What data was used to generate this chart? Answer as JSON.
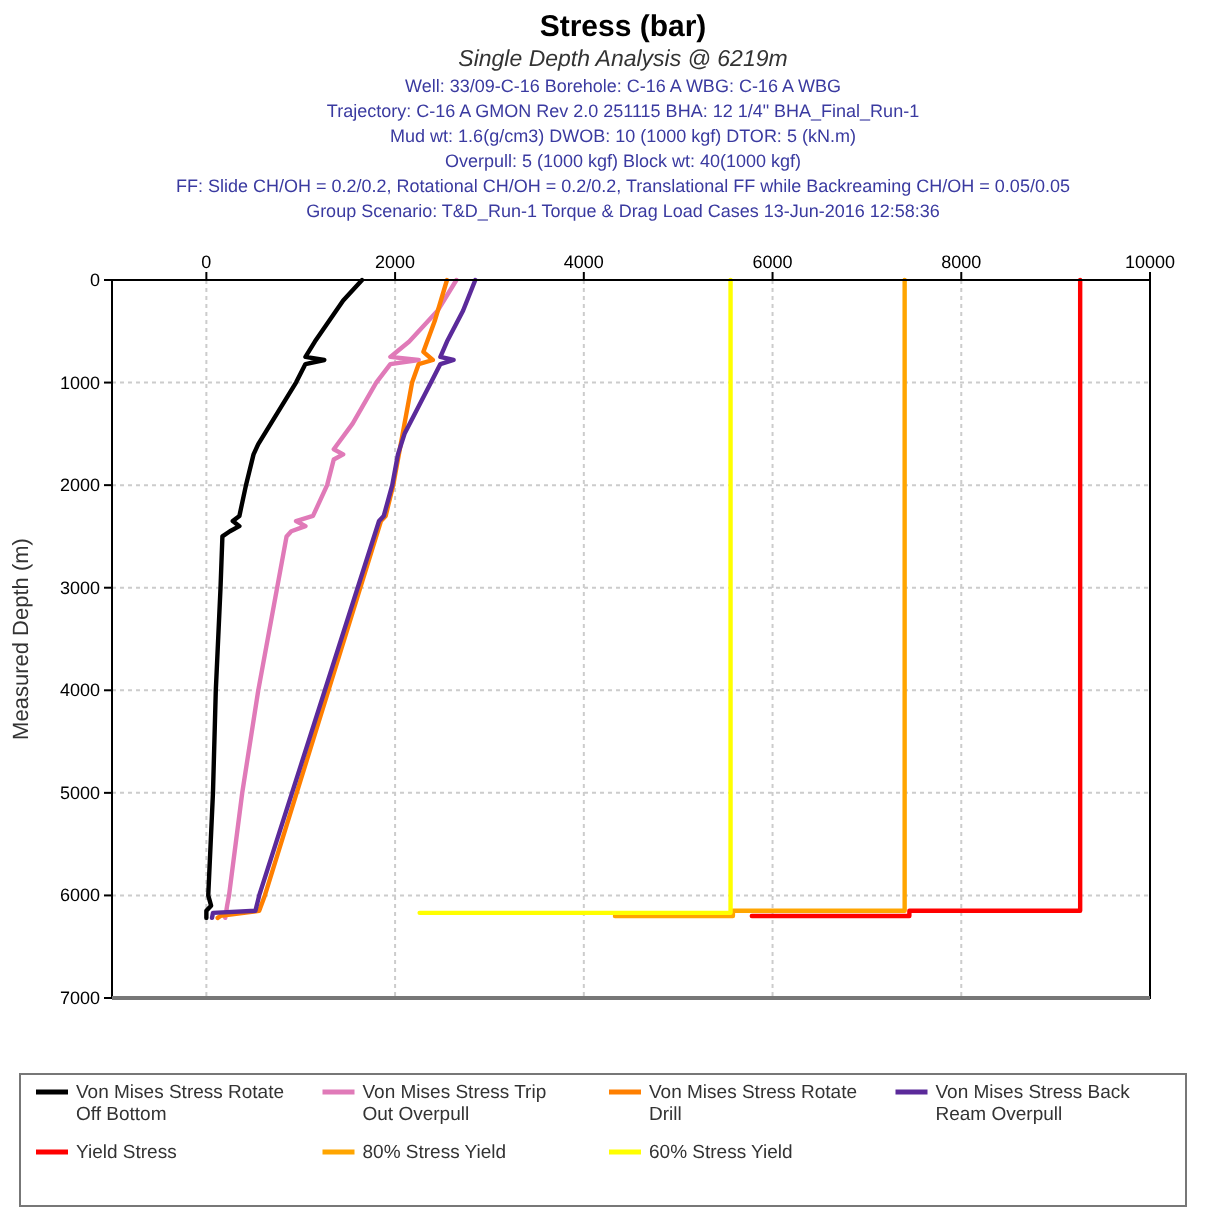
{
  "chart_data": {
    "type": "line",
    "title": "Stress (bar)",
    "subtitle": "Single Depth Analysis @ 6219m",
    "annotations": [
      "Well: 33/09-C-16 Borehole: C-16 A WBG: C-16 A WBG",
      "Trajectory: C-16 A GMON Rev 2.0 251115 BHA: 12 1/4\" BHA_Final_Run-1",
      "Mud wt: 1.6(g/cm3) DWOB: 10 (1000 kgf) DTOR: 5 (kN.m)",
      "Overpull: 5 (1000 kgf) Block wt: 40(1000 kgf)",
      "FF: Slide CH/OH = 0.2/0.2, Rotational CH/OH = 0.2/0.2, Translational FF while Backreaming CH/OH = 0.05/0.05",
      "Group Scenario: T&D_Run-1 Torque & Drag Load Cases 13-Jun-2016 12:58:36"
    ],
    "ylabel": "Measured Depth (m)",
    "xlim": [
      -1000,
      10000
    ],
    "xticks": [
      0,
      2000,
      4000,
      6000,
      8000,
      10000
    ],
    "ylim": [
      7000,
      0
    ],
    "yticks": [
      0,
      1000,
      2000,
      3000,
      4000,
      5000,
      6000,
      7000
    ],
    "grid": true,
    "legend": "bottom",
    "marker": "none",
    "line_style": "solid",
    "series": [
      {
        "name": "Von Mises Stress Rotate Off Bottom",
        "color": "#000000",
        "x": [
          1650,
          1450,
          1300,
          1150,
          1050,
          1250,
          1050,
          950,
          750,
          550,
          500,
          420,
          350,
          280,
          350,
          250,
          170,
          150,
          100,
          70,
          20,
          50,
          0,
          0
        ],
        "values": [
          0,
          200,
          400,
          600,
          750,
          780,
          820,
          1000,
          1300,
          1600,
          1700,
          2000,
          2300,
          2350,
          2400,
          2450,
          2500,
          3000,
          4000,
          5000,
          6000,
          6100,
          6150,
          6219
        ]
      },
      {
        "name": "Von Mises Stress Trip Out Overpull",
        "color": "#e07ab8",
        "x": [
          2650,
          2450,
          2150,
          1950,
          2250,
          1950,
          1800,
          1550,
          1350,
          1450,
          1350,
          1280,
          1130,
          950,
          1050,
          900,
          850,
          550,
          380,
          240,
          220,
          200
        ],
        "values": [
          0,
          300,
          600,
          750,
          780,
          820,
          1000,
          1400,
          1650,
          1700,
          1750,
          2000,
          2300,
          2350,
          2400,
          2450,
          2500,
          4000,
          5000,
          6000,
          6100,
          6219
        ]
      },
      {
        "name": "Von Mises Stress Rotate Drill",
        "color": "#ff7f00",
        "x": [
          2550,
          2420,
          2300,
          2400,
          2250,
          2180,
          2080,
          1980,
          1900,
          1850,
          620,
          560,
          150,
          120
        ],
        "values": [
          0,
          400,
          700,
          780,
          820,
          1000,
          1500,
          2000,
          2300,
          2350,
          6000,
          6150,
          6200,
          6219
        ]
      },
      {
        "name": "Von Mises Stress Back Ream Overpull",
        "color": "#5b2a9a",
        "x": [
          2850,
          2720,
          2550,
          2480,
          2620,
          2480,
          2380,
          2100,
          2030,
          1970,
          1880,
          1830,
          560,
          520,
          70,
          60
        ],
        "values": [
          0,
          300,
          600,
          750,
          780,
          820,
          1000,
          1500,
          1700,
          2000,
          2300,
          2350,
          6000,
          6150,
          6170,
          6219
        ]
      },
      {
        "name": "Yield Stress",
        "color": "#ff0000",
        "x": [
          9260,
          9260,
          7450,
          7450,
          5780
        ],
        "values": [
          0,
          6150,
          6150,
          6200,
          6200
        ]
      },
      {
        "name": "80% Stress Yield",
        "color": "#ffa500",
        "x": [
          7400,
          7400,
          5580,
          5580,
          4330
        ],
        "values": [
          0,
          6150,
          6150,
          6200,
          6200
        ]
      },
      {
        "name": "60% Stress Yield",
        "color": "#ffff00",
        "x": [
          5555,
          5555,
          2260
        ],
        "values": [
          0,
          6170,
          6170
        ]
      }
    ]
  }
}
